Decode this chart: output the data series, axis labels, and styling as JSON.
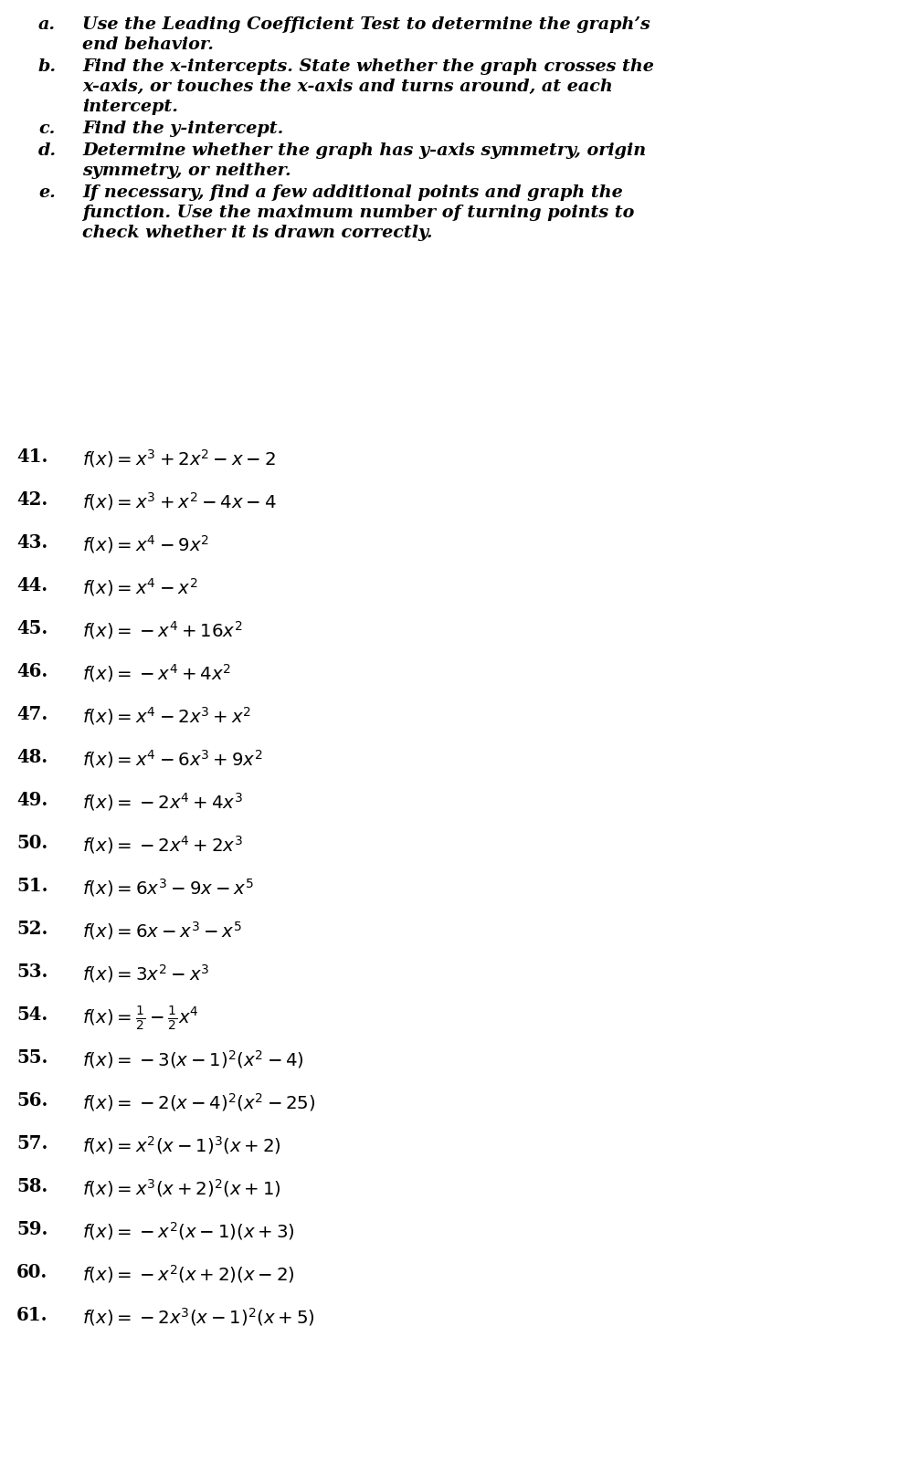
{
  "background_color": "#ffffff",
  "figsize": [
    10.06,
    16.02
  ],
  "dpi": 100,
  "instruction_font_size": 13.8,
  "problem_font_size": 14.2,
  "number_font_size": 14.2
}
